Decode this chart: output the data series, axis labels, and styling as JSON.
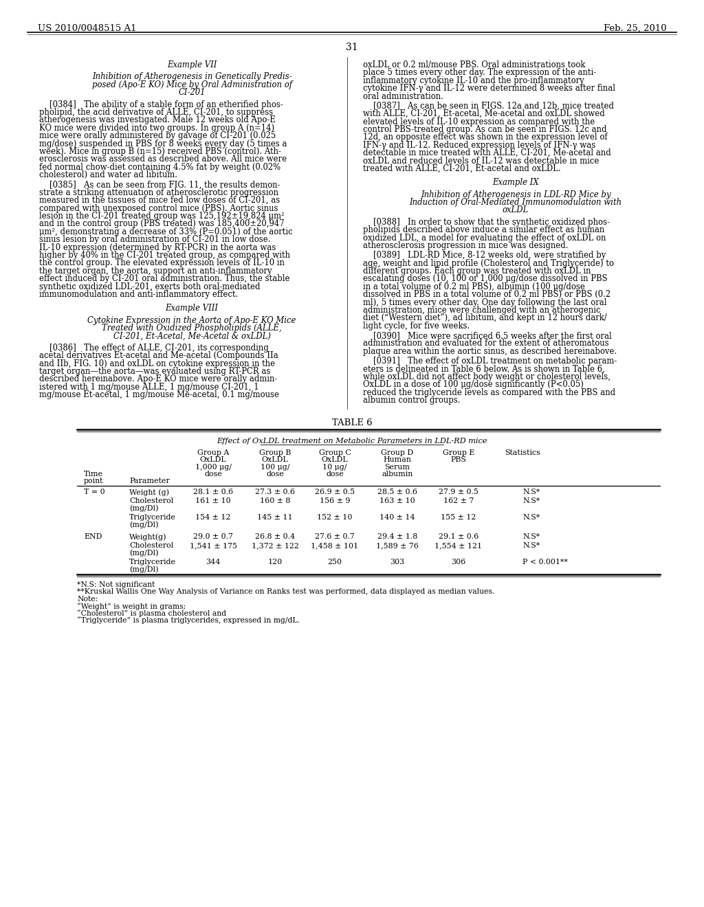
{
  "page_header_left": "US 2010/0048515 A1",
  "page_header_right": "Feb. 25, 2010",
  "page_number": "31",
  "background_color": "#ffffff",
  "left_column": [
    {
      "type": "heading_center",
      "text": "Example VII"
    },
    {
      "type": "blank_small"
    },
    {
      "type": "heading_center",
      "text": "Inhibition of Atherogenesis in Genetically Predis-\nposed (Apo-E KO) Mice by Oral Administration of\nCI-201"
    },
    {
      "type": "blank_small"
    },
    {
      "type": "paragraph",
      "text": "    [0384]   The ability of a stable form of an etherified phos-\npholipid, the acid derivative of ALLE, CI-201, to suppress\natherogenesis was investigated. Male 12 weeks old Apo-E\nKO mice were divided into two groups. In group A (n=14)\nmice were orally administered by gavage of CI-201 (0.025\nmg/dose) suspended in PBS for 8 weeks every day (5 times a\nweek). Mice in group B (n=15) received PBS (control). Ath-\nerosclerosis was assessed as described above. All mice were\nfed normal chow-diet containing 4.5% fat by weight (0.02%\ncholesterol) and water ad libitum."
    },
    {
      "type": "paragraph",
      "text": "    [0385]   As can be seen from FIG. 11, the results demon-\nstrate a striking attenuation of atherosclerotic progression\nmeasured in the tissues of mice fed low doses of CI-201, as\ncompared with unexposed control mice (PBS). Aortic sinus\nlesion in the CI-201 treated group was 125,192±19,824 μm²\nand in the control group (PBS treated) was 185,400±20,947\nμm², demonstrating a decrease of 33% (P=0.051) of the aortic\nsinus lesion by oral administration of CI-201 in low dose.\nIL-10 expression (determined by RT-PCR) in the aorta was\nhigher by 40% in the CI-201 treated group, as compared with\nthe control group. The elevated expression levels of IL-10 in\nthe target organ, the aorta, support an anti-inflammatory\neffect induced by CI-201 oral administration. Thus, the stable\nsynthetic oxidized LDL-201, exerts both oral-mediated\nimmunomodulation and anti-inflammatory effect."
    },
    {
      "type": "blank_small"
    },
    {
      "type": "heading_center",
      "text": "Example VIII"
    },
    {
      "type": "blank_small"
    },
    {
      "type": "heading_center",
      "text": "Cytokine Expression in the Aorta of Apo-E KO Mice\nTreated with Oxidized Phospholipids (ALLE,\nCI-201, Et-Acetal, Me-Acetal & oxLDL)"
    },
    {
      "type": "blank_small"
    },
    {
      "type": "paragraph",
      "text": "    [0386]   The effect of ALLE, CI-201, its corresponding\nacetal derivatives Et-acetal and Me-acetal (Compounds IIa\nand IIb, FIG. 10) and oxLDL on cytokine expression in the\ntarget organ—the aorta—was evaluated using RT-PCR as\ndescribed hereinabove. Apo-E KO mice were orally admin-\nistered with 1 mg/mouse ALLE, 1 mg/mouse CI-201, 1\nmg/mouse Et-acetal, 1 mg/mouse Me-acetal, 0.1 mg/mouse"
    }
  ],
  "right_column": [
    {
      "type": "paragraph",
      "text": "oxLDL or 0.2 ml/mouse PBS. Oral administrations took\nplace 5 times every other day. The expression of the anti-\ninflammatory cytokine IL-10 and the pro-inflammatory\ncytokine IFN-γ and IL-12 were determined 8 weeks after final\noral administration."
    },
    {
      "type": "paragraph",
      "text": "    [0387]   As can be seen in FIGS. 12a and 12b, mice treated\nwith ALLE, CI-201, Et-acetal, Me-acetal and oxLDL showed\nelevated levels of IL-10 expression as compared with the\ncontrol PBS-treated group. As can be seen in FIGS. 12c and\n12d, an opposite effect was shown in the expression level of\nIFN-γ and IL-12. Reduced expression levels of IFN-γ was\ndetectable in mice treated with ALLE, CI-201, Me-acetal and\noxLDL and reduced levels of IL-12 was detectable in mice\ntreated with ALLE, CI-201, Et-acetal and oxLDL."
    },
    {
      "type": "blank_small"
    },
    {
      "type": "heading_center",
      "text": "Example IX"
    },
    {
      "type": "blank_small"
    },
    {
      "type": "heading_center",
      "text": "Inhibition of Atherogenesis in LDL-RD Mice by\nInduction of Oral-Mediated Immunomodulation with\noxLDL"
    },
    {
      "type": "blank_small"
    },
    {
      "type": "paragraph",
      "text": "    [0388]   In order to show that the synthetic oxidized phos-\npholipids described above induce a similar effect as human\noxidized LDL, a model for evaluating the effect of oxLDL on\natherosclerosis progression in mice was designed."
    },
    {
      "type": "paragraph",
      "text": "    [0389]   LDL-RD Mice, 8-12 weeks old, were stratified by\nage, weight and lipid profile (Cholesterol and Triglyceride) to\ndifferent groups. Each group was treated with oxLDL in\nescalating doses (10, 100 or 1,000 μg/dose dissolved in PBS\nin a total volume of 0.2 ml PBS), albumin (100 μg/dose\ndissolved in PBS in a total volume of 0.2 ml PBS) or PBS (0.2\nml), 5 times every other day. One day following the last oral\nadministration, mice were challenged with an atherogenic\ndiet (“Western diet”), ad libitum, and kept in 12 hours dark/\nlight cycle, for five weeks."
    },
    {
      "type": "paragraph",
      "text": "    [0390]   Mice were sacrificed 6.5 weeks after the first oral\nadministration and evaluated for the extent of atheromatous\nplaque area within the aortic sinus, as described hereinabove."
    },
    {
      "type": "paragraph",
      "text": "    [0391]   The effect of oxLDL treatment on metabolic param-\neters is delineated in Table 6 below. As is shown in Table 6,\nwhile oxLDL did not affect body weight or cholesterol levels,\nOxLDL in a dose of 100 μg/dose significantly (P<0.05)\nreduced the triglyceride levels as compared with the PBS and\nalbumin control groups."
    }
  ],
  "table_title": "TABLE 6",
  "table_subtitle": "Effect of OxLDL treatment on Metabolic Parameters in LDL-RD mice",
  "table_rows": [
    [
      "T = 0",
      "Weight (g)",
      "28.1 ± 0.6",
      "27.3 ± 0.6",
      "26.9 ± 0.5",
      "28.5 ± 0.6",
      "27.9 ± 0.5",
      "N.S*"
    ],
    [
      "",
      "Cholesterol\n(mg/Dl)",
      "161 ± 10",
      "160 ± 8",
      "156 ± 9",
      "163 ± 10",
      "162 ± 7",
      "N.S*"
    ],
    [
      "",
      "Triglyceride\n(mg/Dl)",
      "154 ± 12",
      "145 ± 11",
      "152 ± 10",
      "140 ± 14",
      "155 ± 12",
      "N.S*"
    ],
    [
      "END",
      "Weight(g)",
      "29.0 ± 0.7",
      "26.8 ± 0.4",
      "27.6 ± 0.7",
      "29.4 ± 1.8",
      "29.1 ± 0.6",
      "N.S*"
    ],
    [
      "",
      "Cholesterol\n(mg/Dl)",
      "1,541 ± 175",
      "1,372 ± 122",
      "1,458 ± 101",
      "1,589 ± 76",
      "1,554 ± 121",
      "N.S*"
    ],
    [
      "",
      "Triglyceride\n(mg/Dl)",
      "344",
      "120",
      "250",
      "303",
      "306",
      "P < 0.001**"
    ]
  ],
  "table_footnotes": [
    "*N.S: Not significant",
    "**Kruskal Wallis One Way Analysis of Variance on Ranks test was performed, data displayed as median values.",
    "Note:",
    "“Weight” is weight in grams;",
    "“Cholesterol” is plasma cholesterol and",
    "“Triglyceride” is plasma triglycerides, expressed in mg/dL."
  ]
}
